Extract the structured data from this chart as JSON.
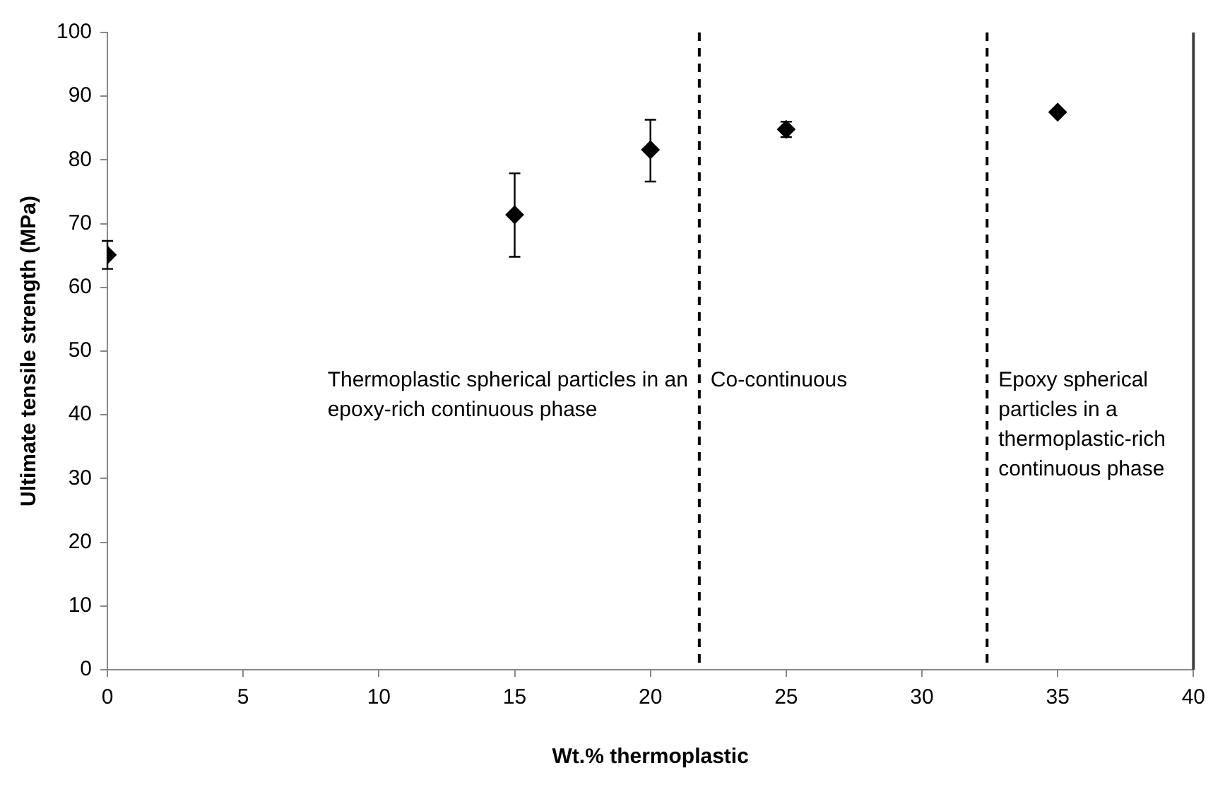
{
  "chart_data": {
    "type": "scatter",
    "xlabel": "Wt.% thermoplastic",
    "ylabel": "Ultimate tensile strength (MPa)",
    "x": [
      0,
      15,
      20,
      25,
      35
    ],
    "series": [
      {
        "color": "#000000",
        "values": [
          65.1,
          71.4,
          81.6,
          84.8,
          87.5
        ],
        "errors": [
          [
            62.9,
            67.3
          ],
          [
            64.8,
            77.9
          ],
          [
            76.6,
            86.3
          ],
          [
            83.6,
            86.0
          ],
          null
        ]
      }
    ],
    "xlim": [
      0,
      40
    ],
    "xticks": [
      0,
      5,
      10,
      15,
      20,
      25,
      30,
      35,
      40
    ],
    "ylim": [
      0,
      100
    ],
    "yticks": [
      0,
      10,
      20,
      30,
      40,
      50,
      60,
      70,
      80,
      90,
      100
    ],
    "marker": "diamond",
    "grid": false,
    "legend": false,
    "ref_lines": [
      {
        "axis": "x",
        "value": 21.8,
        "line_style": "dashed",
        "color": "#000000"
      },
      {
        "axis": "x",
        "value": 32.4,
        "line_style": "dashed",
        "color": "#000000"
      },
      {
        "axis": "x",
        "value": 40,
        "line_style": "solid",
        "color": "#404040"
      }
    ],
    "annotations": [
      "Thermoplastic spherical particles in an epoxy-rich continuous phase",
      "Co-continuous",
      "Epoxy spherical particles in a thermoplastic-rich continuous phase"
    ]
  }
}
